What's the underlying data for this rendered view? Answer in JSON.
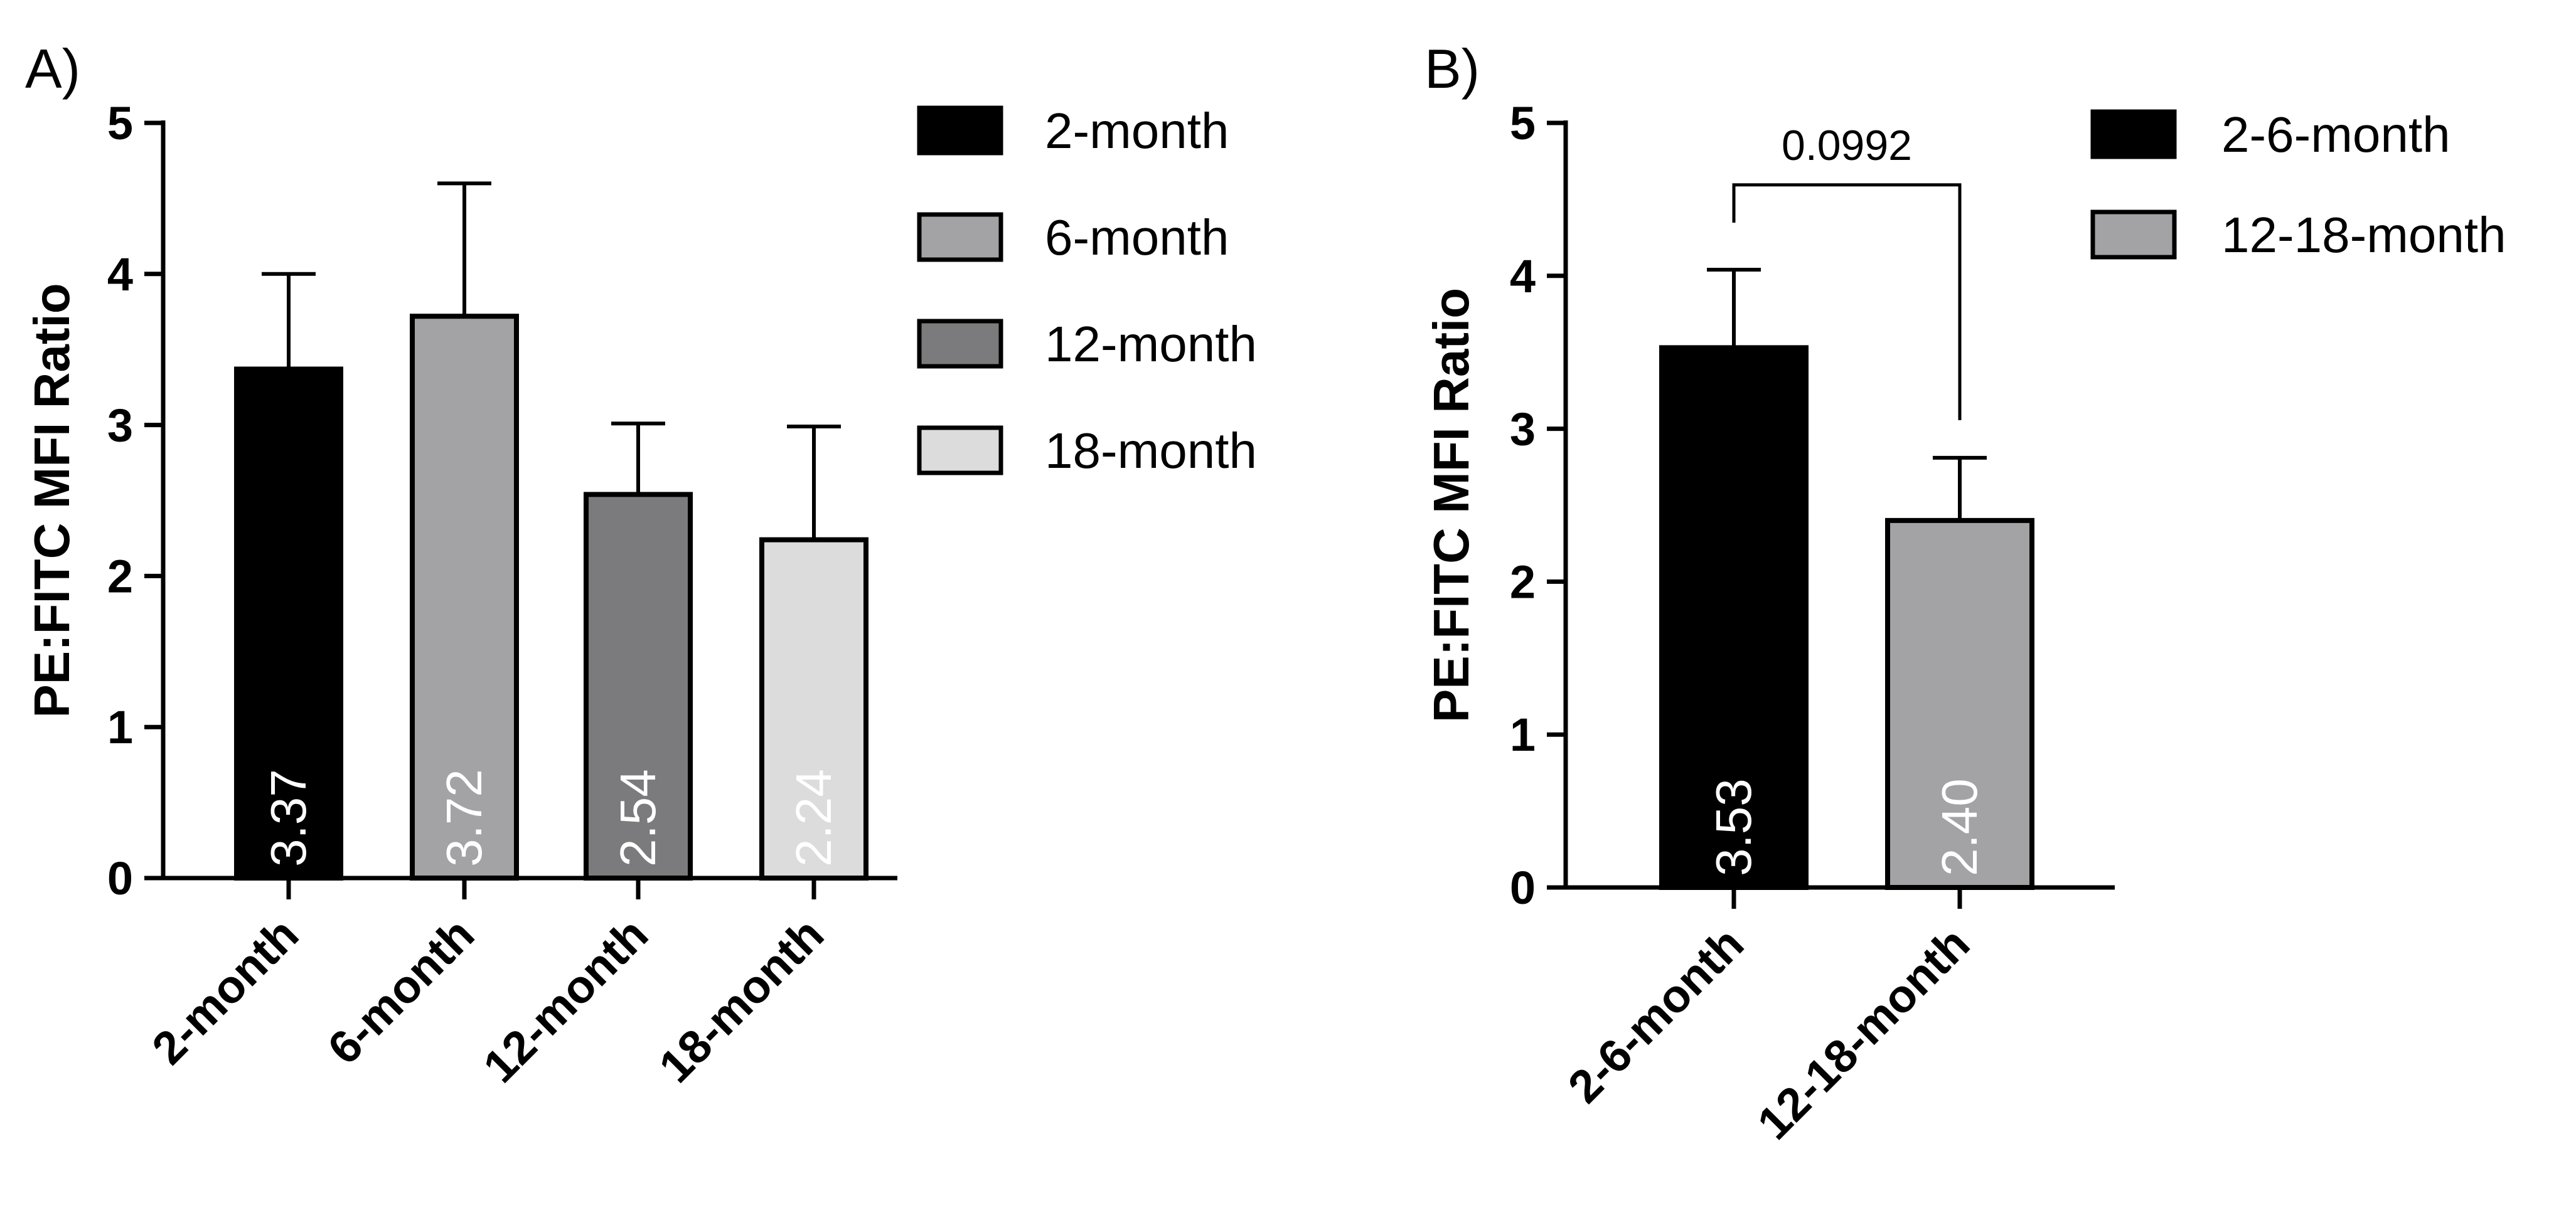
{
  "colors": {
    "black": "#000000",
    "mid_gray": "#a3a3a6",
    "dark_gray": "#7b7b7d",
    "light_gray": "#dcdcdc",
    "value_text": "#ffffff"
  },
  "chart_data": [
    {
      "type": "bar",
      "panel_label": "A)",
      "title": "",
      "xlabel": "",
      "ylabel": "PE:FITC MFI Ratio",
      "ylim": [
        0,
        5
      ],
      "yticks": [
        "0",
        "1",
        "2",
        "3",
        "4",
        "5"
      ],
      "categories": [
        "2-month",
        "6-month",
        "12-month",
        "18-month"
      ],
      "values": [
        3.37,
        3.72,
        2.54,
        2.24
      ],
      "error_upper": [
        4.0,
        4.6,
        3.01,
        2.99
      ],
      "value_labels": [
        "3.37",
        "3.72",
        "2.54",
        "2.24"
      ],
      "bar_colors": [
        "#000000",
        "#a3a3a6",
        "#7b7b7d",
        "#dcdcdc"
      ],
      "legend": {
        "position": "top-right",
        "entries": [
          "2-month",
          "6-month",
          "12-month",
          "18-month"
        ]
      }
    },
    {
      "type": "bar",
      "panel_label": "B)",
      "title": "",
      "xlabel": "",
      "ylabel": "PE:FITC MFI Ratio",
      "ylim": [
        0,
        5
      ],
      "yticks": [
        "0",
        "1",
        "2",
        "3",
        "4",
        "5"
      ],
      "categories": [
        "2-6-month",
        "12-18-month"
      ],
      "values": [
        3.53,
        2.4
      ],
      "error_upper": [
        4.04,
        2.81
      ],
      "value_labels": [
        "3.53",
        "2.40"
      ],
      "bar_colors": [
        "#000000",
        "#a3a3a6"
      ],
      "significance": {
        "label": "0.0992",
        "between": [
          0,
          1
        ],
        "y": 4.8
      },
      "legend": {
        "position": "top-right",
        "entries": [
          "2-6-month",
          "12-18-month"
        ]
      }
    }
  ]
}
